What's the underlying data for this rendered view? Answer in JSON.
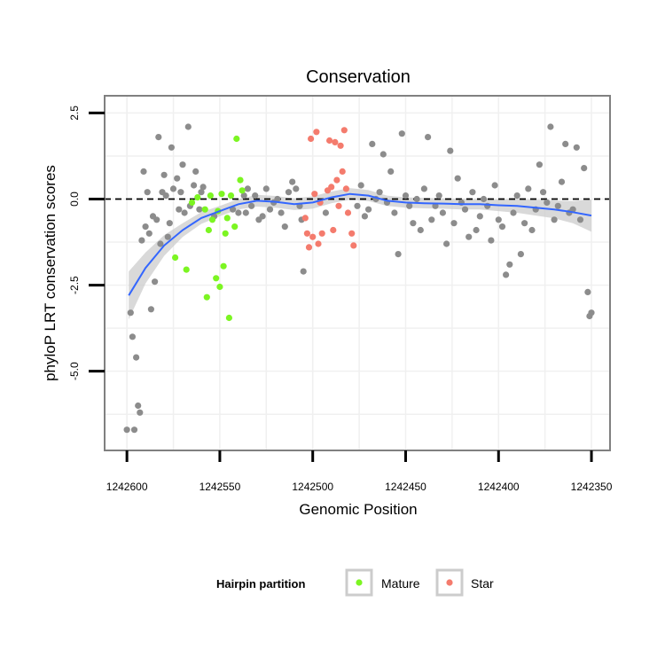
{
  "chart_data": {
    "type": "scatter",
    "title": "Conservation",
    "xlabel": "Genomic Position",
    "ylabel": "phyloP LRT conservation scores",
    "x_reversed": true,
    "xlim": [
      1242612,
      1242340
    ],
    "ylim": [
      -7.3,
      3.0
    ],
    "x_ticks": [
      1242600,
      1242550,
      1242500,
      1242450,
      1242400,
      1242350
    ],
    "x_tick_labels": [
      "1242600",
      "1242550",
      "1242500",
      "1242450",
      "1242400",
      "1242350"
    ],
    "y_ticks": [
      2.5,
      0,
      -2.5,
      -5
    ],
    "y_tick_labels": [
      "2.5",
      "0.0",
      "-2.5",
      "-5.0"
    ],
    "hline": 0,
    "grid": true,
    "legend": {
      "title": "Hairpin partition",
      "placement": "bottom",
      "entries": [
        {
          "label": "Mature",
          "color": "#7CF522"
        },
        {
          "label": "Star",
          "color": "#F47B6D"
        }
      ]
    },
    "colors": {
      "other": "#8C8C8C",
      "Mature": "#7CF522",
      "Star": "#F47B6D",
      "smooth_line": "#3366FF",
      "smooth_band": "#CCCCCC",
      "panel_border": "#808080",
      "grid": "#F0F0F0"
    },
    "smooth": {
      "x": [
        1242599,
        1242590,
        1242580,
        1242570,
        1242560,
        1242550,
        1242540,
        1242530,
        1242520,
        1242510,
        1242500,
        1242490,
        1242480,
        1242470,
        1242460,
        1242450,
        1242440,
        1242430,
        1242420,
        1242410,
        1242400,
        1242390,
        1242380,
        1242370,
        1242360,
        1242350
      ],
      "y": [
        -2.8,
        -2.0,
        -1.35,
        -0.9,
        -0.55,
        -0.35,
        -0.15,
        -0.05,
        -0.08,
        -0.15,
        -0.1,
        0.05,
        0.15,
        0.1,
        -0.05,
        -0.1,
        -0.12,
        -0.13,
        -0.15,
        -0.15,
        -0.18,
        -0.2,
        -0.25,
        -0.3,
        -0.38,
        -0.48
      ],
      "lower": [
        -3.5,
        -2.45,
        -1.65,
        -1.1,
        -0.72,
        -0.5,
        -0.3,
        -0.22,
        -0.25,
        -0.32,
        -0.28,
        -0.12,
        -0.02,
        -0.06,
        -0.2,
        -0.25,
        -0.27,
        -0.28,
        -0.3,
        -0.3,
        -0.35,
        -0.4,
        -0.48,
        -0.56,
        -0.7,
        -0.95
      ],
      "upper": [
        -2.1,
        -1.55,
        -1.05,
        -0.7,
        -0.38,
        -0.2,
        0.0,
        0.12,
        0.09,
        0.02,
        0.08,
        0.22,
        0.32,
        0.26,
        0.1,
        0.05,
        0.03,
        0.02,
        0.0,
        0.0,
        -0.01,
        0.0,
        -0.02,
        -0.04,
        -0.06,
        -0.01
      ]
    },
    "series": [
      {
        "name": "Mature",
        "color": "#7CF522",
        "x": [
          1242574,
          1242568,
          1242565,
          1242562,
          1242558,
          1242557,
          1242556,
          1242555,
          1242554,
          1242552,
          1242551,
          1242550,
          1242549,
          1242548,
          1242547,
          1242546,
          1242545,
          1242544,
          1242542,
          1242541,
          1242539,
          1242538
        ],
        "y": [
          -1.7,
          -2.05,
          -0.1,
          0.05,
          -0.3,
          -2.85,
          -0.9,
          0.1,
          -0.6,
          -2.3,
          -0.35,
          -2.55,
          0.15,
          -1.95,
          -1.0,
          -0.55,
          -3.45,
          0.1,
          -0.8,
          1.75,
          0.55,
          0.25
        ]
      },
      {
        "name": "Star",
        "color": "#F47B6D",
        "x": [
          1242504,
          1242503,
          1242502,
          1242501,
          1242500,
          1242499,
          1242498,
          1242497,
          1242496,
          1242495,
          1242492,
          1242491,
          1242490,
          1242489,
          1242488,
          1242487,
          1242486,
          1242485,
          1242484,
          1242483,
          1242482,
          1242481,
          1242479,
          1242478
        ],
        "y": [
          -0.55,
          -1.0,
          -1.4,
          1.75,
          -1.1,
          0.15,
          1.95,
          -1.3,
          -0.1,
          -1.0,
          0.25,
          1.7,
          0.35,
          -0.9,
          1.65,
          0.55,
          -0.2,
          1.55,
          0.8,
          2.0,
          0.3,
          -0.4,
          -1.0,
          -1.35
        ]
      },
      {
        "name": "other",
        "color": "#8C8C8C",
        "x": [
          1242600,
          1242598,
          1242597,
          1242596,
          1242595,
          1242594,
          1242593,
          1242592,
          1242591,
          1242590,
          1242589,
          1242588,
          1242587,
          1242586,
          1242585,
          1242584,
          1242583,
          1242582,
          1242581,
          1242580,
          1242579,
          1242578,
          1242577,
          1242576,
          1242575,
          1242573,
          1242572,
          1242571,
          1242570,
          1242569,
          1242567,
          1242566,
          1242564,
          1242563,
          1242561,
          1242560,
          1242559,
          1242553,
          1242543,
          1242540,
          1242537,
          1242536,
          1242535,
          1242533,
          1242531,
          1242529,
          1242527,
          1242525,
          1242523,
          1242521,
          1242519,
          1242517,
          1242515,
          1242513,
          1242511,
          1242509,
          1242507,
          1242506,
          1242505,
          1242493,
          1242476,
          1242474,
          1242472,
          1242470,
          1242468,
          1242466,
          1242464,
          1242462,
          1242460,
          1242458,
          1242456,
          1242454,
          1242452,
          1242450,
          1242448,
          1242446,
          1242444,
          1242442,
          1242440,
          1242438,
          1242436,
          1242434,
          1242432,
          1242430,
          1242428,
          1242426,
          1242424,
          1242422,
          1242420,
          1242418,
          1242416,
          1242414,
          1242412,
          1242410,
          1242408,
          1242406,
          1242404,
          1242402,
          1242400,
          1242398,
          1242396,
          1242394,
          1242392,
          1242390,
          1242388,
          1242386,
          1242384,
          1242382,
          1242380,
          1242378,
          1242376,
          1242374,
          1242372,
          1242370,
          1242368,
          1242366,
          1242364,
          1242362,
          1242360,
          1242358,
          1242356,
          1242354,
          1242352,
          1242351,
          1242350
        ],
        "y": [
          -6.7,
          -3.3,
          -4.0,
          -6.7,
          -4.6,
          -6.0,
          -6.2,
          -1.2,
          0.8,
          -0.8,
          0.2,
          -1.0,
          -3.2,
          -0.5,
          -2.4,
          -0.6,
          1.8,
          -1.3,
          0.2,
          0.7,
          0.1,
          -1.1,
          -0.7,
          1.5,
          0.3,
          0.6,
          -0.3,
          0.2,
          1.0,
          -0.4,
          2.1,
          -0.2,
          0.4,
          0.8,
          -0.3,
          0.2,
          0.35,
          -0.5,
          -0.3,
          -0.4,
          0.1,
          -0.4,
          0.3,
          -0.2,
          0.1,
          -0.6,
          -0.5,
          0.3,
          -0.3,
          -0.1,
          0.0,
          -0.4,
          -0.8,
          0.2,
          0.5,
          0.3,
          -0.2,
          -0.6,
          -2.1,
          -0.4,
          -0.2,
          0.4,
          -0.5,
          -0.3,
          1.6,
          0.0,
          0.2,
          1.3,
          -0.1,
          0.8,
          -0.4,
          -1.6,
          1.9,
          0.1,
          -0.2,
          -0.7,
          0.0,
          -0.9,
          0.3,
          1.8,
          -0.6,
          -0.2,
          0.1,
          -0.4,
          -1.3,
          1.4,
          -0.7,
          0.6,
          -0.1,
          -0.3,
          -1.1,
          0.2,
          -0.9,
          -0.5,
          0.0,
          -0.2,
          -1.2,
          0.4,
          -0.6,
          -0.8,
          -2.2,
          -1.9,
          -0.4,
          0.1,
          -1.6,
          -0.7,
          0.3,
          -0.9,
          -0.3,
          1.0,
          0.2,
          -0.1,
          2.1,
          -0.6,
          -0.2,
          0.5,
          1.6,
          -0.4,
          -0.3,
          1.5,
          -0.6,
          0.9,
          -2.7,
          -3.4,
          -3.3
        ]
      }
    ]
  }
}
